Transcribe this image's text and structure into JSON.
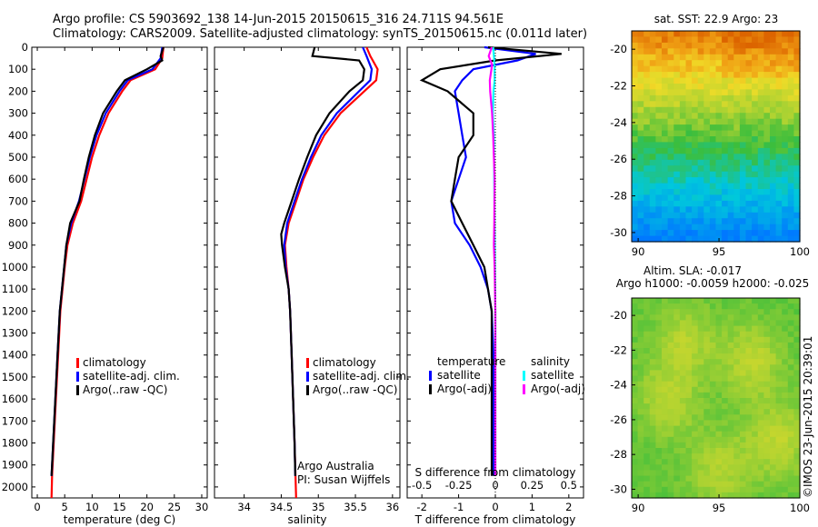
{
  "header": {
    "line1": "Argo profile: CS 5903692_138 14-Jun-2015 20150615_316 24.711S 94.561E",
    "line2": "Climatology: CARS2009. Satellite-adjusted climatology: synTS_20150615.nc (0.011d later)"
  },
  "colors": {
    "climatology": "#ff0000",
    "satellite": "#0000ff",
    "argo": "#000000",
    "sal_satellite": "#00ffff",
    "sal_argo": "#ff00ff"
  },
  "chart_data": [
    {
      "type": "line",
      "id": "temperature",
      "xlabel": "temperature (deg C)",
      "ylabel": "",
      "xlim": [
        -1,
        31
      ],
      "ylim": [
        2050,
        0
      ],
      "xticks": [
        "0",
        "5",
        "10",
        "15",
        "20",
        "25",
        "30"
      ],
      "yticks": [
        "0",
        "100",
        "200",
        "300",
        "400",
        "500",
        "600",
        "700",
        "800",
        "900",
        "1000",
        "1100",
        "1200",
        "1300",
        "1400",
        "1500",
        "1600",
        "1700",
        "1800",
        "1900",
        "2000"
      ],
      "legend": [
        "climatology",
        "satellite-adj. clim.",
        "Argo(..raw -QC)"
      ],
      "series": [
        {
          "name": "climatology",
          "y": [
            0,
            50,
            100,
            150,
            200,
            300,
            400,
            500,
            600,
            700,
            800,
            900,
            1000,
            1200,
            1400,
            1600,
            1800,
            1950,
            2050
          ],
          "x": [
            23.0,
            22.8,
            21.5,
            17.0,
            15.5,
            13.0,
            11.3,
            10.0,
            9.0,
            8.0,
            6.5,
            5.5,
            5.0,
            4.2,
            3.8,
            3.4,
            3.0,
            2.7,
            2.6
          ]
        },
        {
          "name": "satellite-adj. clim.",
          "y": [
            0,
            50,
            100,
            150,
            200,
            300,
            400,
            500,
            600,
            700,
            800,
            900,
            1000,
            1200,
            1400,
            1600,
            1800,
            1950
          ],
          "x": [
            22.8,
            22.5,
            21.0,
            16.5,
            15.0,
            12.5,
            10.8,
            9.6,
            8.6,
            7.6,
            6.2,
            5.3,
            4.9,
            4.1,
            3.7,
            3.3,
            2.9,
            2.6
          ]
        },
        {
          "name": "Argo(..raw -QC)",
          "y": [
            0,
            40,
            60,
            100,
            150,
            200,
            300,
            400,
            500,
            600,
            700,
            800,
            900,
            1000,
            1200,
            1400,
            1600,
            1800,
            1950
          ],
          "x": [
            23.0,
            22.5,
            22.8,
            20.0,
            16.0,
            14.5,
            12.0,
            10.5,
            9.4,
            8.5,
            7.7,
            6.0,
            5.3,
            4.9,
            4.1,
            3.7,
            3.3,
            2.9,
            2.6
          ]
        }
      ]
    },
    {
      "type": "line",
      "id": "salinity",
      "xlabel": "salinity",
      "xlim": [
        33.6,
        36.1
      ],
      "ylim": [
        2050,
        0
      ],
      "xticks": [
        "34",
        "34.5",
        "35",
        "35.5",
        "36"
      ],
      "legend": [
        "climatology",
        "satellite-adj. clim.",
        "Argo(..raw -QC)"
      ],
      "annotation": [
        "Argo Australia",
        "PI: Susan Wijffels"
      ],
      "series": [
        {
          "name": "climatology",
          "y": [
            0,
            40,
            100,
            150,
            200,
            300,
            400,
            500,
            600,
            700,
            800,
            900,
            1000,
            1100,
            1200,
            1400,
            1600,
            1800,
            2050
          ],
          "x": [
            35.65,
            35.7,
            35.8,
            35.78,
            35.62,
            35.3,
            35.08,
            34.93,
            34.8,
            34.7,
            34.6,
            34.55,
            34.57,
            34.6,
            34.62,
            34.64,
            34.66,
            34.68,
            34.7
          ]
        },
        {
          "name": "satellite-adj. clim.",
          "y": [
            0,
            40,
            100,
            150,
            200,
            300,
            400,
            500,
            600,
            700,
            800,
            900,
            1000,
            1100,
            1200,
            1400,
            1600,
            1800,
            1950
          ],
          "x": [
            35.6,
            35.65,
            35.72,
            35.7,
            35.55,
            35.25,
            35.04,
            34.9,
            34.78,
            34.68,
            34.58,
            34.54,
            34.56,
            34.6,
            34.62,
            34.64,
            34.66,
            34.68,
            34.69
          ]
        },
        {
          "name": "Argo(..raw -QC)",
          "y": [
            0,
            40,
            60,
            100,
            150,
            200,
            300,
            400,
            500,
            600,
            700,
            800,
            850,
            900,
            1000,
            1100,
            1200,
            1400,
            1600,
            1800,
            1950
          ],
          "x": [
            34.95,
            34.92,
            35.55,
            35.62,
            35.6,
            35.42,
            35.15,
            34.97,
            34.85,
            34.74,
            34.64,
            34.54,
            34.5,
            34.51,
            34.55,
            34.6,
            34.62,
            34.64,
            34.66,
            34.68,
            34.69
          ]
        }
      ]
    },
    {
      "type": "line",
      "id": "difference",
      "xlabel": "T difference from climatology",
      "xlabel_top": "S difference from climatology",
      "xlim": [
        -2.4,
        2.4
      ],
      "ylim": [
        2050,
        0
      ],
      "xticks": [
        "-2",
        "-1",
        "0",
        "1",
        "2"
      ],
      "xticks_sal": [
        "-0.5",
        "-0.25",
        "0",
        "0.25",
        "0.5"
      ],
      "legend_headers": [
        "temperature",
        "salinity"
      ],
      "legend": [
        "satellite",
        "Argo(-adj)",
        "satellite",
        "Argo(-adj)"
      ],
      "series": [
        {
          "name": "temperature satellite",
          "y": [
            0,
            30,
            60,
            100,
            150,
            200,
            300,
            400,
            500,
            600,
            700,
            800,
            900,
            1000,
            1100,
            1200,
            1400,
            1600,
            1800,
            1950
          ],
          "x": [
            -0.3,
            1.1,
            0.6,
            -0.6,
            -0.9,
            -1.1,
            -1.0,
            -0.9,
            -0.8,
            -1.0,
            -1.2,
            -1.1,
            -0.7,
            -0.4,
            -0.2,
            -0.1,
            -0.05,
            -0.05,
            -0.05,
            -0.05
          ]
        },
        {
          "name": "temperature Argo(-adj)",
          "y": [
            0,
            30,
            60,
            100,
            150,
            200,
            300,
            400,
            500,
            600,
            700,
            800,
            900,
            1000,
            1100,
            1200,
            1400,
            1600,
            1800,
            1950
          ],
          "x": [
            -0.2,
            1.8,
            0.0,
            -1.5,
            -2.0,
            -1.3,
            -0.6,
            -0.6,
            -1.0,
            -1.1,
            -1.2,
            -0.9,
            -0.6,
            -0.3,
            -0.2,
            -0.1,
            -0.1,
            -0.1,
            -0.1,
            -0.1
          ]
        },
        {
          "name": "salinity satellite",
          "y": [
            0,
            40,
            80,
            150,
            200,
            300,
            400,
            600,
            800,
            1000,
            1200,
            1400,
            1600,
            1800,
            1950
          ],
          "x": [
            -0.06,
            -0.04,
            -0.02,
            -0.02,
            -0.05,
            -0.07,
            -0.04,
            -0.03,
            -0.02,
            -0.01,
            0.0,
            0.0,
            0.0,
            0.0,
            0.0
          ]
        },
        {
          "name": "salinity Argo(-adj)",
          "y": [
            0,
            40,
            80,
            150,
            200,
            300,
            400,
            600,
            800,
            900,
            1000,
            1200,
            1400,
            1600,
            1800,
            1950
          ],
          "x": [
            -0.1,
            -0.18,
            -0.09,
            -0.15,
            -0.14,
            -0.09,
            -0.06,
            -0.02,
            -0.03,
            -0.04,
            -0.02,
            0.0,
            0.0,
            0.0,
            0.0,
            0.0
          ]
        }
      ]
    },
    {
      "type": "heatmap",
      "id": "sst_map",
      "title": "sat. SST: 22.9  Argo: 23",
      "xlim": [
        89.6,
        100.0
      ],
      "ylim": [
        -30.5,
        -19.0
      ],
      "xticks": [
        "90",
        "95",
        "100"
      ],
      "yticks": [
        "-20",
        "-22",
        "-24",
        "-26",
        "-28",
        "-30"
      ]
    },
    {
      "type": "heatmap",
      "id": "sla_map",
      "title": "Altim. SLA: -0.017",
      "subtitle": "Argo h1000: -0.0059  h2000: -0.025",
      "xlim": [
        89.6,
        100.0
      ],
      "ylim": [
        -30.5,
        -19.0
      ],
      "xticks": [
        "90",
        "95",
        "100"
      ],
      "yticks": [
        "-20",
        "-22",
        "-24",
        "-26",
        "-28",
        "-30"
      ]
    }
  ],
  "footer": {
    "stamp": "©IMOS 23-Jun-2015 20:39:01"
  }
}
